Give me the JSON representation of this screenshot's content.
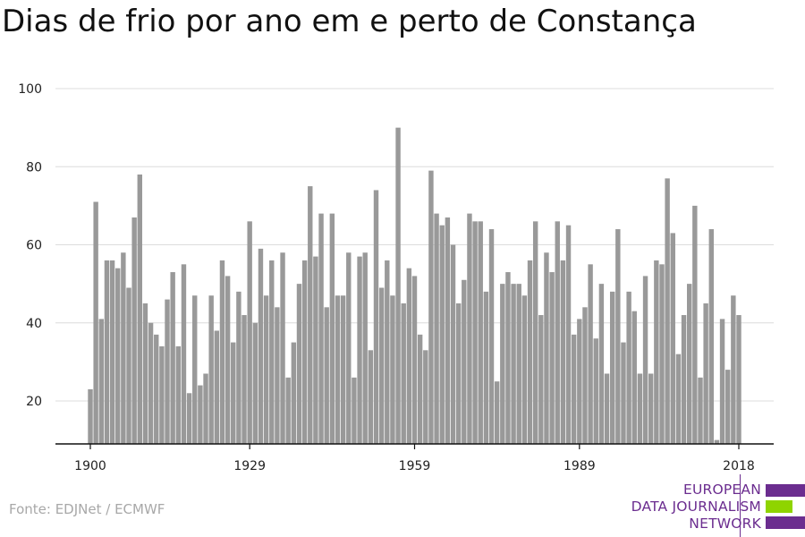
{
  "title": "Dias de frio por ano em e perto de Constança",
  "source": "Fonte: EDJNet / ECMWF",
  "logo": {
    "lines": [
      "EUROPEAN",
      "DATA JOURNALISM",
      "NETWORK"
    ],
    "colors": {
      "purple": "#6b2d8f",
      "green": "#8fd400"
    }
  },
  "chart_data": {
    "type": "bar",
    "title": "Dias de frio por ano em e perto de Constança",
    "xlabel": "",
    "ylabel": "",
    "x_ticks": [
      "1900",
      "1929",
      "1959",
      "1989",
      "2018"
    ],
    "y_ticks": [
      20,
      40,
      60,
      80,
      100
    ],
    "ylim": [
      9,
      100
    ],
    "grid": true,
    "bar_color": "#999999",
    "categories": [
      1900,
      1901,
      1902,
      1903,
      1904,
      1905,
      1906,
      1907,
      1908,
      1909,
      1910,
      1911,
      1912,
      1913,
      1914,
      1915,
      1916,
      1917,
      1918,
      1919,
      1920,
      1921,
      1922,
      1923,
      1924,
      1925,
      1926,
      1927,
      1928,
      1929,
      1930,
      1931,
      1932,
      1933,
      1934,
      1935,
      1936,
      1937,
      1938,
      1939,
      1940,
      1941,
      1942,
      1943,
      1944,
      1945,
      1946,
      1947,
      1948,
      1949,
      1950,
      1951,
      1952,
      1953,
      1954,
      1955,
      1956,
      1957,
      1958,
      1959,
      1960,
      1961,
      1962,
      1963,
      1964,
      1965,
      1966,
      1967,
      1968,
      1969,
      1970,
      1971,
      1972,
      1973,
      1974,
      1975,
      1976,
      1977,
      1978,
      1979,
      1980,
      1981,
      1982,
      1983,
      1984,
      1985,
      1986,
      1987,
      1988,
      1989,
      1990,
      1991,
      1992,
      1993,
      1994,
      1995,
      1996,
      1997,
      1998,
      1999,
      2000,
      2001,
      2002,
      2003,
      2004,
      2005,
      2006,
      2007,
      2008,
      2009,
      2010,
      2011,
      2012,
      2013,
      2014,
      2015,
      2016,
      2017,
      2018
    ],
    "values": [
      23,
      71,
      41,
      56,
      56,
      54,
      58,
      49,
      67,
      78,
      45,
      40,
      37,
      34,
      46,
      53,
      34,
      55,
      22,
      47,
      24,
      27,
      47,
      38,
      56,
      52,
      35,
      48,
      42,
      66,
      40,
      59,
      47,
      56,
      44,
      58,
      26,
      35,
      50,
      56,
      75,
      57,
      68,
      44,
      68,
      47,
      47,
      58,
      26,
      57,
      58,
      33,
      74,
      49,
      56,
      47,
      90,
      45,
      54,
      52,
      37,
      33,
      79,
      68,
      65,
      67,
      60,
      45,
      51,
      68,
      66,
      66,
      48,
      64,
      25,
      50,
      53,
      50,
      50,
      47,
      56,
      66,
      42,
      58,
      53,
      66,
      56,
      65,
      37,
      41,
      44,
      55,
      36,
      50,
      27,
      48,
      64,
      35,
      48,
      43,
      27,
      52,
      27,
      56,
      55,
      77,
      63,
      32,
      42,
      50,
      70,
      26,
      45,
      64,
      10,
      41,
      28,
      47,
      42
    ]
  }
}
